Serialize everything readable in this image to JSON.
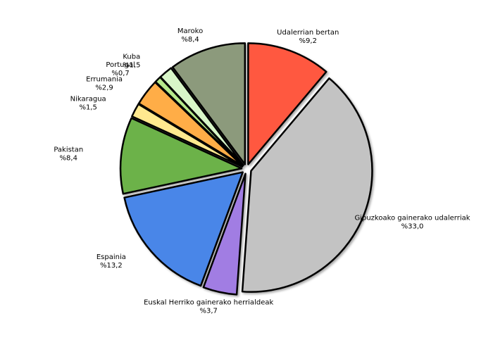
{
  "chart_data": {
    "type": "pie",
    "categories": [
      "Udalerrian bertan",
      "Gipuzkoako gainerako udalerriak",
      "Euskal Herriko gainerako herrialdeak",
      "Espainia",
      "Pakistan",
      "Nikaragua",
      "Errumania",
      "Portugal",
      "Kuba",
      "Maroko"
    ],
    "values": [
      9.2,
      33.0,
      3.7,
      13.2,
      8.4,
      1.5,
      2.9,
      0.7,
      1.5,
      8.4
    ],
    "value_labels": [
      "%9,2",
      "%33,0",
      "%3,7",
      "%13,2",
      "%8,4",
      "%1,5",
      "%2,9",
      "%0,7",
      "%1,5",
      "%8,4"
    ],
    "colors": [
      "#ff5840",
      "#c3c3c3",
      "#a17de3",
      "#4a86e8",
      "#6cb24a",
      "#ffe98f",
      "#ffad47",
      "#b6e98b",
      "#d8f6c8",
      "#8c9a7c"
    ]
  }
}
